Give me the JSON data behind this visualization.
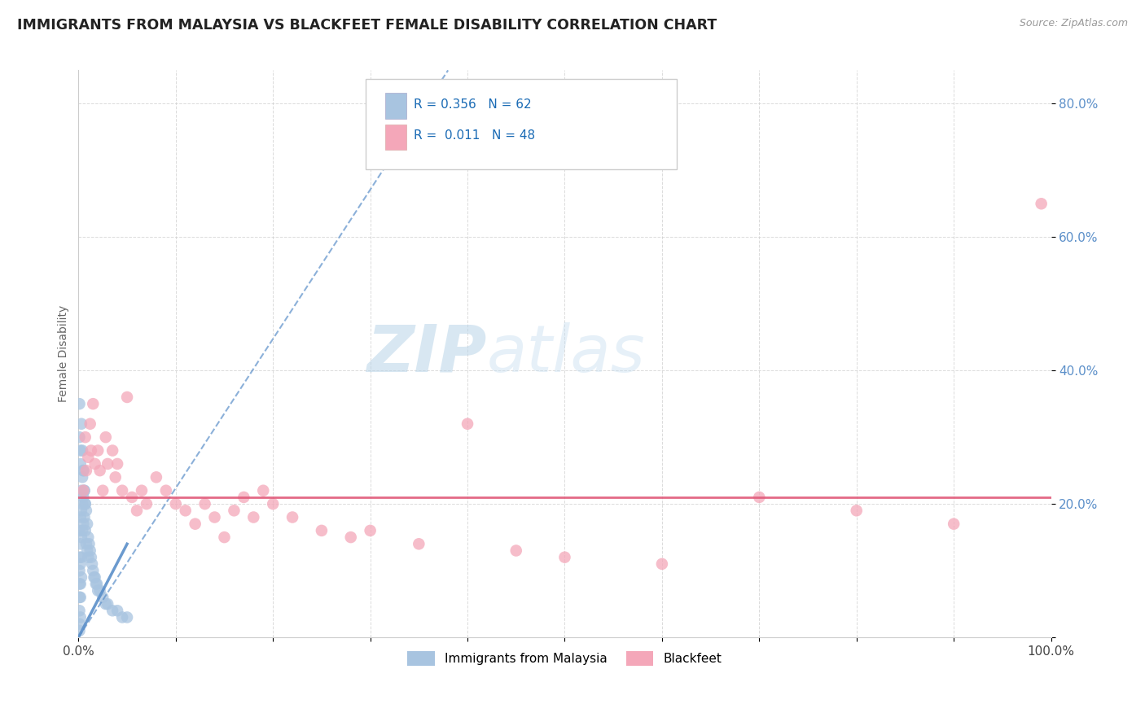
{
  "title": "IMMIGRANTS FROM MALAYSIA VS BLACKFEET FEMALE DISABILITY CORRELATION CHART",
  "source": "Source: ZipAtlas.com",
  "ylabel": "Female Disability",
  "xlim": [
    0.0,
    1.0
  ],
  "ylim": [
    0.0,
    0.85
  ],
  "x_tick_positions": [
    0.0,
    0.1,
    0.2,
    0.3,
    0.4,
    0.5,
    0.6,
    0.7,
    0.8,
    0.9,
    1.0
  ],
  "x_tick_labels": [
    "0.0%",
    "",
    "",
    "",
    "",
    "",
    "",
    "",
    "",
    "",
    "100.0%"
  ],
  "y_tick_positions": [
    0.0,
    0.2,
    0.4,
    0.6,
    0.8
  ],
  "y_tick_labels": [
    "",
    "20.0%",
    "40.0%",
    "60.0%",
    "80.0%"
  ],
  "blue_R": "0.356",
  "blue_N": "62",
  "pink_R": "0.011",
  "pink_N": "48",
  "blue_color": "#a8c4e0",
  "pink_color": "#f4a7b9",
  "blue_line_color": "#5b8fc9",
  "pink_line_color": "#e05a7a",
  "legend_label_blue": "Immigrants from Malaysia",
  "legend_label_pink": "Blackfeet",
  "blue_scatter_x": [
    0.001,
    0.001,
    0.001,
    0.001,
    0.001,
    0.001,
    0.001,
    0.001,
    0.002,
    0.002,
    0.002,
    0.002,
    0.002,
    0.002,
    0.003,
    0.003,
    0.003,
    0.003,
    0.003,
    0.004,
    0.004,
    0.004,
    0.005,
    0.005,
    0.005,
    0.006,
    0.006,
    0.007,
    0.007,
    0.008,
    0.008,
    0.009,
    0.009,
    0.01,
    0.01,
    0.011,
    0.012,
    0.013,
    0.014,
    0.015,
    0.016,
    0.017,
    0.018,
    0.019,
    0.02,
    0.022,
    0.025,
    0.028,
    0.03,
    0.035,
    0.04,
    0.045,
    0.05,
    0.001,
    0.001,
    0.002,
    0.002,
    0.003,
    0.004,
    0.005,
    0.006,
    0.007
  ],
  "blue_scatter_y": [
    0.16,
    0.12,
    0.1,
    0.08,
    0.06,
    0.04,
    0.02,
    0.01,
    0.18,
    0.14,
    0.11,
    0.08,
    0.06,
    0.03,
    0.22,
    0.19,
    0.15,
    0.12,
    0.09,
    0.24,
    0.2,
    0.16,
    0.25,
    0.21,
    0.17,
    0.22,
    0.18,
    0.2,
    0.16,
    0.19,
    0.14,
    0.17,
    0.13,
    0.15,
    0.12,
    0.14,
    0.13,
    0.12,
    0.11,
    0.1,
    0.09,
    0.09,
    0.08,
    0.08,
    0.07,
    0.07,
    0.06,
    0.05,
    0.05,
    0.04,
    0.04,
    0.03,
    0.03,
    0.35,
    0.3,
    0.28,
    0.26,
    0.32,
    0.28,
    0.25,
    0.22,
    0.2
  ],
  "pink_scatter_x": [
    0.005,
    0.007,
    0.008,
    0.01,
    0.012,
    0.013,
    0.015,
    0.017,
    0.02,
    0.022,
    0.025,
    0.028,
    0.03,
    0.035,
    0.038,
    0.04,
    0.045,
    0.05,
    0.055,
    0.06,
    0.065,
    0.07,
    0.08,
    0.09,
    0.1,
    0.11,
    0.12,
    0.13,
    0.14,
    0.15,
    0.16,
    0.17,
    0.18,
    0.19,
    0.2,
    0.22,
    0.25,
    0.28,
    0.3,
    0.35,
    0.4,
    0.45,
    0.5,
    0.6,
    0.7,
    0.8,
    0.9,
    0.99
  ],
  "pink_scatter_y": [
    0.22,
    0.3,
    0.25,
    0.27,
    0.32,
    0.28,
    0.35,
    0.26,
    0.28,
    0.25,
    0.22,
    0.3,
    0.26,
    0.28,
    0.24,
    0.26,
    0.22,
    0.36,
    0.21,
    0.19,
    0.22,
    0.2,
    0.24,
    0.22,
    0.2,
    0.19,
    0.17,
    0.2,
    0.18,
    0.15,
    0.19,
    0.21,
    0.18,
    0.22,
    0.2,
    0.18,
    0.16,
    0.15,
    0.16,
    0.14,
    0.32,
    0.13,
    0.12,
    0.11,
    0.21,
    0.19,
    0.17,
    0.65
  ],
  "watermark_zip": "ZIP",
  "watermark_atlas": "atlas",
  "background_color": "#ffffff",
  "grid_color": "#cccccc",
  "blue_line_x": [
    0.0,
    1.0
  ],
  "blue_line_y": [
    0.0,
    0.85
  ],
  "pink_line_y": 0.21
}
